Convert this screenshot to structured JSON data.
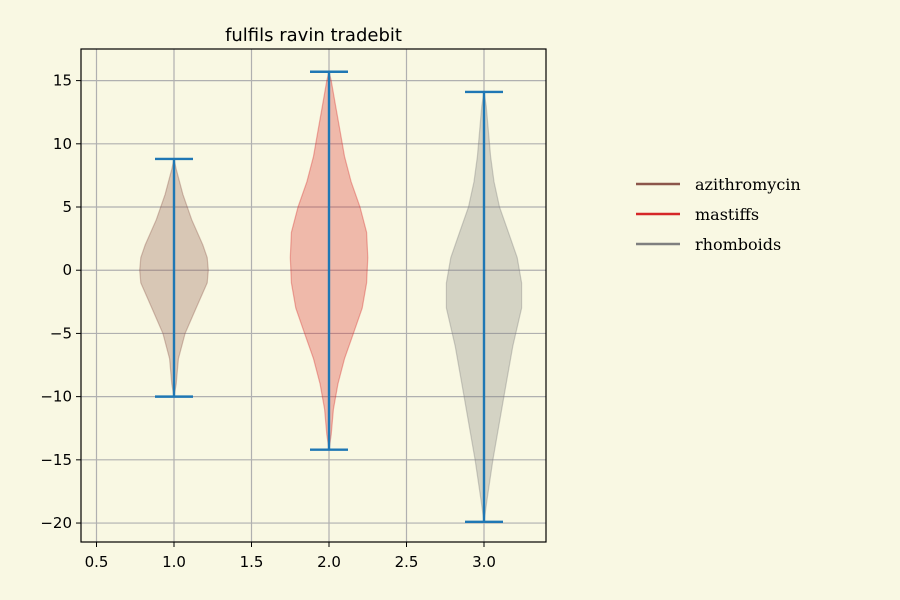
{
  "chart_data": {
    "type": "violin",
    "title": "fulfils ravin tradebit",
    "xlabel": "",
    "ylabel": "",
    "xlim": [
      0.4,
      3.4
    ],
    "ylim": [
      -21.5,
      17.5
    ],
    "xticks": [
      "0.5",
      "1.0",
      "1.5",
      "2.0",
      "2.5",
      "3.0"
    ],
    "yticks": [
      "15",
      "10",
      "5",
      "0",
      "−5",
      "−10",
      "−15",
      "−20"
    ],
    "grid": true,
    "legend_position": "right",
    "series": [
      {
        "name": "azithromycin",
        "x": 1.0,
        "min": -10.0,
        "max": 8.8,
        "color": "#8c564b",
        "density": [
          [
            -10,
            0.0
          ],
          [
            -9,
            0.01
          ],
          [
            -7,
            0.02
          ],
          [
            -5,
            0.05
          ],
          [
            -3,
            0.1
          ],
          [
            -1,
            0.15
          ],
          [
            0,
            0.155
          ],
          [
            1,
            0.15
          ],
          [
            2,
            0.13
          ],
          [
            4,
            0.08
          ],
          [
            6,
            0.04
          ],
          [
            8,
            0.01
          ],
          [
            8.8,
            0.0
          ]
        ]
      },
      {
        "name": "mastiffs",
        "x": 2.0,
        "min": -14.2,
        "max": 15.7,
        "color": "#d62728",
        "density": [
          [
            -14.2,
            0.0
          ],
          [
            -13,
            0.01
          ],
          [
            -11,
            0.02
          ],
          [
            -9,
            0.04
          ],
          [
            -7,
            0.07
          ],
          [
            -5,
            0.11
          ],
          [
            -3,
            0.15
          ],
          [
            -1,
            0.17
          ],
          [
            1,
            0.175
          ],
          [
            3,
            0.17
          ],
          [
            5,
            0.14
          ],
          [
            7,
            0.1
          ],
          [
            9,
            0.07
          ],
          [
            11,
            0.05
          ],
          [
            13,
            0.03
          ],
          [
            15,
            0.01
          ],
          [
            15.7,
            0.0
          ]
        ]
      },
      {
        "name": "rhomboids",
        "x": 3.0,
        "min": -19.9,
        "max": 14.1,
        "color": "#7f7f7f",
        "density": [
          [
            -19.9,
            0.0
          ],
          [
            -18,
            0.015
          ],
          [
            -15,
            0.04
          ],
          [
            -12,
            0.07
          ],
          [
            -9,
            0.1
          ],
          [
            -6,
            0.13
          ],
          [
            -3,
            0.17
          ],
          [
            -1,
            0.17
          ],
          [
            1,
            0.15
          ],
          [
            3,
            0.11
          ],
          [
            5,
            0.07
          ],
          [
            7,
            0.045
          ],
          [
            9,
            0.03
          ],
          [
            11,
            0.02
          ],
          [
            13,
            0.01
          ],
          [
            14.1,
            0.0
          ]
        ]
      }
    ]
  }
}
